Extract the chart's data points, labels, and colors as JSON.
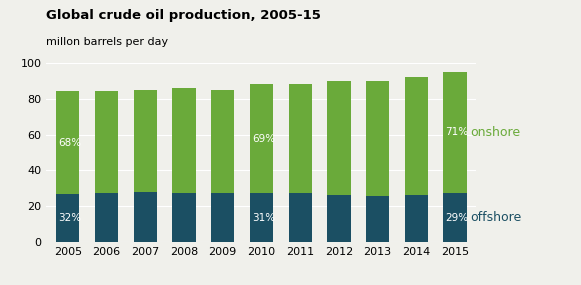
{
  "years": [
    2005,
    2006,
    2007,
    2008,
    2009,
    2010,
    2011,
    2012,
    2013,
    2014,
    2015
  ],
  "offshore": [
    27.0,
    27.5,
    28.0,
    27.5,
    27.5,
    27.5,
    27.5,
    26.5,
    26.0,
    26.5,
    27.5
  ],
  "onshore": [
    57.0,
    56.5,
    57.0,
    58.5,
    57.5,
    60.5,
    60.5,
    63.5,
    64.0,
    65.5,
    67.5
  ],
  "offshore_color": "#1b4f63",
  "onshore_color": "#6aaa3a",
  "background_color": "#f0f0eb",
  "title": "Global crude oil production, 2005-15",
  "subtitle": "millon barrels per day",
  "ylim": [
    0,
    100
  ],
  "yticks": [
    0,
    20,
    40,
    60,
    80,
    100
  ],
  "label_annotations": [
    {
      "year_idx": 0,
      "offshore_pct": "32%",
      "onshore_pct": "68%"
    },
    {
      "year_idx": 5,
      "offshore_pct": "31%",
      "onshore_pct": "69%"
    },
    {
      "year_idx": 10,
      "offshore_pct": "29%",
      "onshore_pct": "71%"
    }
  ],
  "legend_onshore": "onshore",
  "legend_offshore": "offshore",
  "onshore_legend_color": "#6aaa3a",
  "offshore_legend_color": "#1b4f63",
  "bar_width": 0.6
}
